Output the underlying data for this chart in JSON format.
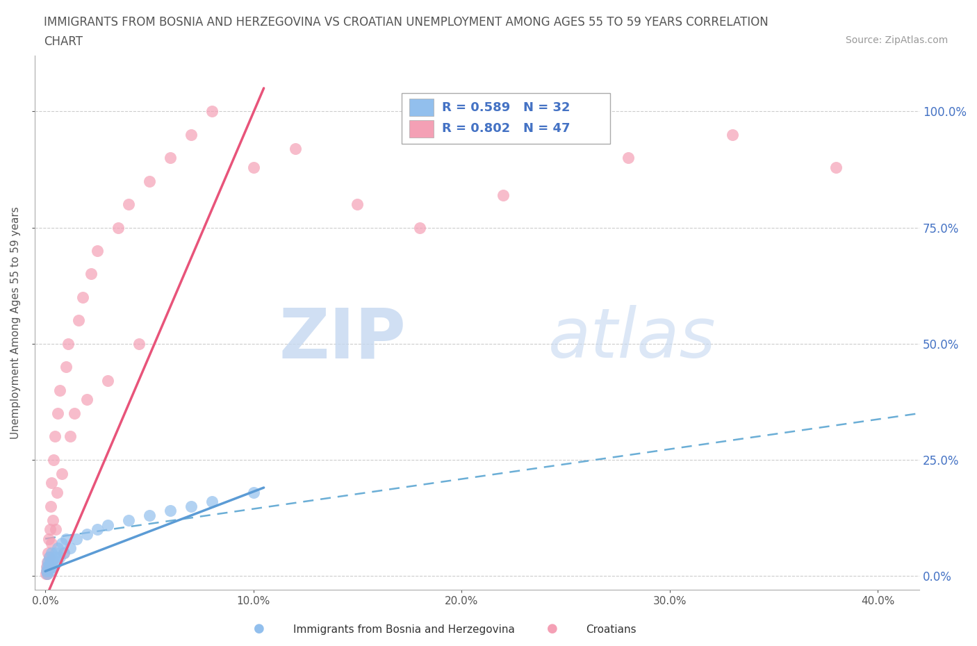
{
  "title_line1": "IMMIGRANTS FROM BOSNIA AND HERZEGOVINA VS CROATIAN UNEMPLOYMENT AMONG AGES 55 TO 59 YEARS CORRELATION",
  "title_line2": "CHART",
  "source_text": "Source: ZipAtlas.com",
  "ylabel": "Unemployment Among Ages 55 to 59 years",
  "x_tick_labels": [
    "0.0%",
    "10.0%",
    "20.0%",
    "30.0%",
    "40.0%"
  ],
  "x_tick_values": [
    0.0,
    10.0,
    20.0,
    30.0,
    40.0
  ],
  "y_tick_labels": [
    "0.0%",
    "25.0%",
    "50.0%",
    "75.0%",
    "100.0%"
  ],
  "y_tick_values": [
    0.0,
    25.0,
    50.0,
    75.0,
    100.0
  ],
  "xlim": [
    -0.5,
    42.0
  ],
  "ylim": [
    -3.0,
    112.0
  ],
  "blue_R": 0.589,
  "blue_N": 32,
  "pink_R": 0.802,
  "pink_N": 47,
  "blue_color": "#92BFED",
  "pink_color": "#F4A0B5",
  "blue_line_color": "#5B9BD5",
  "pink_line_color": "#E8547A",
  "dashed_line_color": "#6BAED6",
  "legend_label_blue": "Immigrants from Bosnia and Herzegovina",
  "legend_label_pink": "Croatians",
  "watermark_zip": "ZIP",
  "watermark_atlas": "atlas",
  "background_color": "#FFFFFF",
  "grid_color": "#CCCCCC",
  "title_color": "#555555",
  "legend_R_N_color": "#4472C4",
  "blue_x": [
    0.05,
    0.08,
    0.1,
    0.12,
    0.15,
    0.18,
    0.2,
    0.22,
    0.25,
    0.28,
    0.3,
    0.35,
    0.4,
    0.45,
    0.5,
    0.55,
    0.6,
    0.7,
    0.8,
    0.9,
    1.0,
    1.2,
    1.5,
    2.0,
    2.5,
    3.0,
    4.0,
    5.0,
    6.0,
    7.0,
    8.0,
    10.0
  ],
  "blue_y": [
    1.0,
    2.0,
    0.5,
    3.0,
    1.5,
    2.5,
    4.0,
    1.0,
    3.0,
    2.0,
    5.0,
    3.5,
    2.0,
    4.0,
    5.0,
    3.0,
    6.0,
    4.0,
    7.0,
    5.0,
    8.0,
    6.0,
    8.0,
    9.0,
    10.0,
    11.0,
    12.0,
    13.0,
    14.0,
    15.0,
    16.0,
    18.0
  ],
  "pink_x": [
    0.03,
    0.05,
    0.07,
    0.08,
    0.1,
    0.12,
    0.15,
    0.18,
    0.2,
    0.22,
    0.25,
    0.28,
    0.3,
    0.35,
    0.4,
    0.45,
    0.5,
    0.55,
    0.6,
    0.7,
    0.8,
    0.9,
    1.0,
    1.1,
    1.2,
    1.4,
    1.6,
    1.8,
    2.0,
    2.2,
    2.5,
    3.0,
    3.5,
    4.0,
    4.5,
    5.0,
    6.0,
    7.0,
    8.0,
    10.0,
    12.0,
    15.0,
    18.0,
    22.0,
    28.0,
    33.0,
    38.0
  ],
  "pink_y": [
    0.5,
    1.0,
    2.0,
    0.5,
    3.0,
    5.0,
    8.0,
    4.0,
    2.0,
    10.0,
    15.0,
    7.0,
    20.0,
    12.0,
    25.0,
    30.0,
    10.0,
    18.0,
    35.0,
    40.0,
    22.0,
    5.0,
    45.0,
    50.0,
    30.0,
    35.0,
    55.0,
    60.0,
    38.0,
    65.0,
    70.0,
    42.0,
    75.0,
    80.0,
    50.0,
    85.0,
    90.0,
    95.0,
    100.0,
    88.0,
    92.0,
    80.0,
    75.0,
    82.0,
    90.0,
    95.0,
    88.0
  ],
  "pink_line_x0": 0.0,
  "pink_line_y0": -5.0,
  "pink_line_x1": 10.5,
  "pink_line_y1": 105.0,
  "blue_line_x0": 0.0,
  "blue_line_y0": 1.0,
  "blue_line_x1": 10.5,
  "blue_line_y1": 19.0,
  "dashed_x0": 0.0,
  "dashed_y0": 8.0,
  "dashed_x1": 42.0,
  "dashed_y1": 35.0
}
